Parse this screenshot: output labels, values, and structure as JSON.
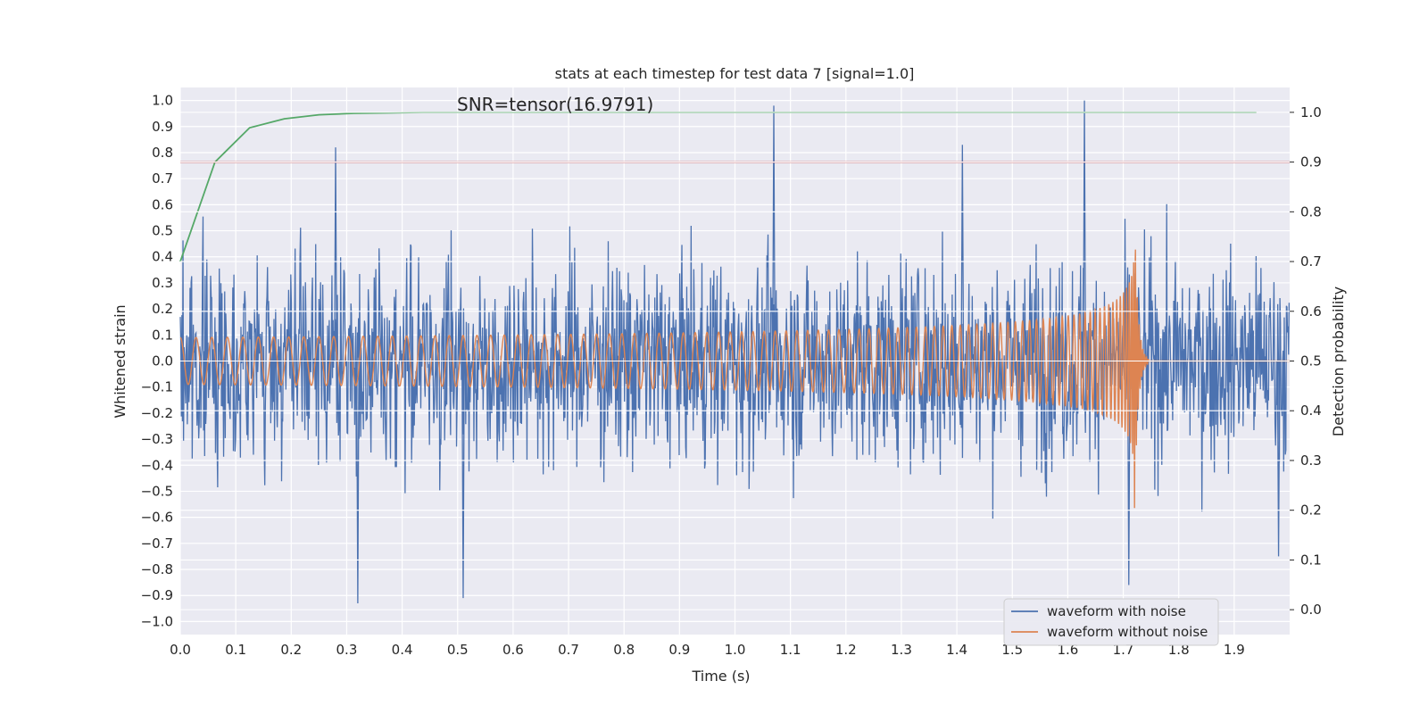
{
  "chart_data": {
    "type": "line",
    "title": "stats at each timestep for test data 7 [signal=1.0]",
    "xlabel": "Time (s)",
    "ylabel": "Whitened strain",
    "ylabel_right": "Detection probability",
    "annotation": "SNR=tensor(16.9791)",
    "xlim": [
      0.0,
      2.0
    ],
    "ylim": [
      -1.05,
      1.05
    ],
    "ylim_right": [
      -0.05,
      1.05
    ],
    "x_ticks": [
      "0.0",
      "0.1",
      "0.2",
      "0.3",
      "0.4",
      "0.5",
      "0.6",
      "0.7",
      "0.8",
      "0.9",
      "1.0",
      "1.1",
      "1.2",
      "1.3",
      "1.4",
      "1.5",
      "1.6",
      "1.7",
      "1.8",
      "1.9"
    ],
    "y_ticks": [
      "1.0",
      "0.9",
      "0.8",
      "0.7",
      "0.6",
      "0.5",
      "0.4",
      "0.3",
      "0.2",
      "0.1",
      "0.0",
      "−0.1",
      "−0.2",
      "−0.3",
      "−0.4",
      "−0.5",
      "−0.6",
      "−0.7",
      "−0.8",
      "−0.9",
      "−1.0"
    ],
    "y_ticks_right": [
      "1.0",
      "0.9",
      "0.8",
      "0.7",
      "0.6",
      "0.5",
      "0.4",
      "0.3",
      "0.2",
      "0.1",
      "0.0"
    ],
    "grid": true,
    "legend_position": "bottom-right",
    "series": [
      {
        "name": "waveform with noise",
        "color": "#4c72b0",
        "axis": "left",
        "kind": "noise",
        "samples": 2048,
        "amplitude_range": [
          -0.93,
          1.0
        ],
        "peaks": [
          {
            "x": 0.28,
            "y": 0.82
          },
          {
            "x": 0.32,
            "y": -0.93
          },
          {
            "x": 0.51,
            "y": -0.91
          },
          {
            "x": 1.07,
            "y": 0.98
          },
          {
            "x": 1.41,
            "y": 0.83
          },
          {
            "x": 1.63,
            "y": 1.0
          },
          {
            "x": 1.71,
            "y": -0.86
          },
          {
            "x": 1.98,
            "y": -0.75
          }
        ]
      },
      {
        "name": "waveform without noise",
        "color": "#dd8452",
        "axis": "left",
        "kind": "chirp",
        "start_amplitude": 0.09,
        "peak_amplitude": 0.6,
        "start_frequency_hz": 35,
        "merger_time": 1.72,
        "ringdown_end": 1.745,
        "x_end": 2.0
      },
      {
        "name": "",
        "color": "#55a868",
        "axis": "right",
        "x": [
          0.0,
          0.0625,
          0.125,
          0.1875,
          0.25,
          0.3125,
          0.375,
          0.4375,
          0.5,
          1.0,
          1.5,
          1.94
        ],
        "y": [
          0.7,
          0.9,
          0.969,
          0.987,
          0.995,
          0.998,
          0.999,
          1.0,
          1.0,
          1.0,
          1.0,
          1.0
        ]
      },
      {
        "name": "",
        "color": "#c44e52",
        "axis": "right",
        "x": [
          0.0,
          2.0
        ],
        "y": [
          0.9,
          0.9
        ]
      }
    ]
  }
}
